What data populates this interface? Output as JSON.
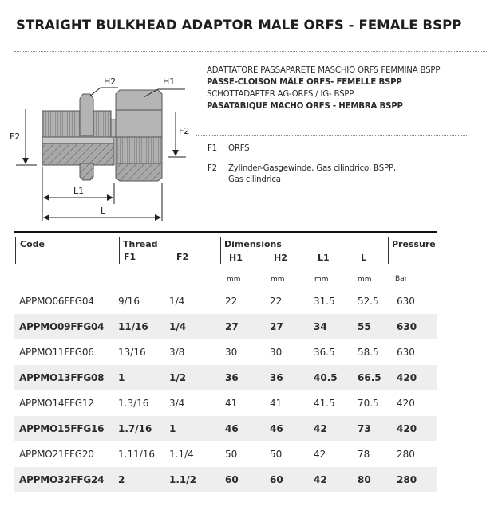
{
  "title": "STRAIGHT BULKHEAD ADAPTOR MALE ORFS - FEMALE BSPP",
  "names": [
    {
      "text": "ADATTATORE PASSAPARETE MASCHIO ORFS FEMMINA BSPP",
      "bold": false
    },
    {
      "text": "PASSE-CLOISON MÂLE ORFS- FEMELLE BSPP",
      "bold": true
    },
    {
      "text": "SCHOTTADAPTER AG-ORFS / IG- BSPP",
      "bold": false
    },
    {
      "text": "PASATABIQUE MACHO ORFS - HEMBRA BSPP",
      "bold": true
    }
  ],
  "legend": [
    {
      "key": "F1",
      "text": "ORFS"
    },
    {
      "key": "F2",
      "text": "Zylinder-Gasgewinde, Gas cilindrico, BSPP,",
      "text2": "Gas cilindrica"
    }
  ],
  "diagram_labels": {
    "h1": "H1",
    "h2": "H2",
    "f2_left": "F2",
    "f2_right": "F2",
    "l1": "L1",
    "l": "L"
  },
  "table": {
    "group_headers": {
      "code": "Code",
      "thread": "Thread",
      "dimensions": "Dimensions",
      "pressure": "Pressure"
    },
    "sub_headers": [
      "F1",
      "F2",
      "H1",
      "H2",
      "L1",
      "L"
    ],
    "units": [
      "mm",
      "mm",
      "mm",
      "mm",
      "Bar"
    ],
    "rows": [
      [
        "APPMO06FFG04",
        "9/16",
        "1/4",
        "22",
        "22",
        "31.5",
        "52.5",
        "630"
      ],
      [
        "APPMO09FFG04",
        "11/16",
        "1/4",
        "27",
        "27",
        "34",
        "55",
        "630"
      ],
      [
        "APPMO11FFG06",
        "13/16",
        "3/8",
        "30",
        "30",
        "36.5",
        "58.5",
        "630"
      ],
      [
        "APPMO13FFG08",
        "1",
        "1/2",
        "36",
        "36",
        "40.5",
        "66.5",
        "420"
      ],
      [
        "APPMO14FFG12",
        "1.3/16",
        "3/4",
        "41",
        "41",
        "41.5",
        "70.5",
        "420"
      ],
      [
        "APPMO15FFG16",
        "1.7/16",
        "1",
        "46",
        "46",
        "42",
        "73",
        "420"
      ],
      [
        "APPMO21FFG20",
        "1.11/16",
        "1.1/4",
        "50",
        "50",
        "42",
        "78",
        "280"
      ],
      [
        "APPMO32FFG24",
        "2",
        "1.1/2",
        "60",
        "60",
        "42",
        "80",
        "280"
      ]
    ]
  },
  "colors": {
    "stripe": "#eeeeee",
    "metal": "#a9a9a9",
    "text": "#2a2a2a"
  }
}
